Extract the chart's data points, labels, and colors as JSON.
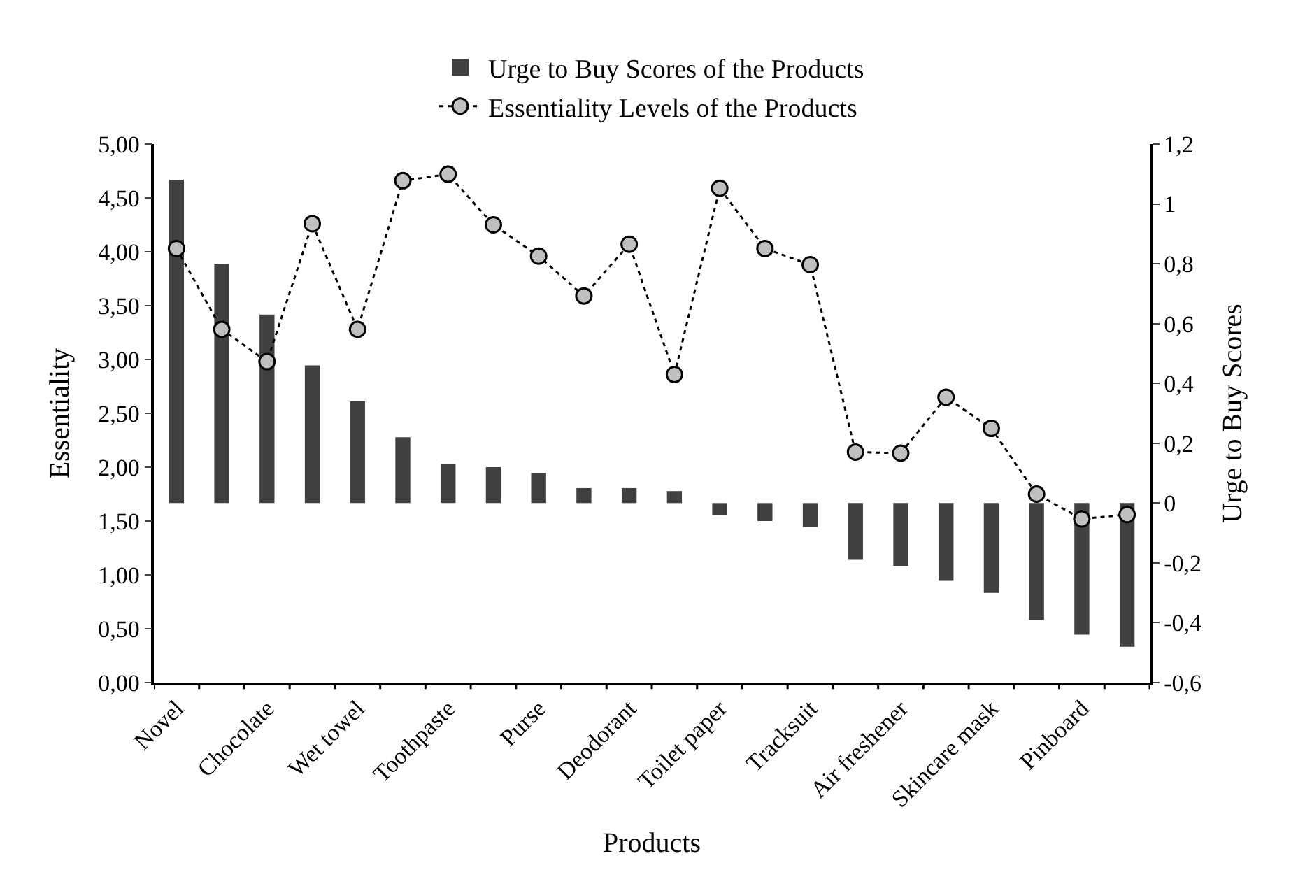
{
  "chart_data": {
    "type": "bar",
    "xlabel": "Products",
    "ylabel": "Essentiality",
    "y2label": "Urge to Buy Scores",
    "categories": [
      "Novel",
      null,
      "Chocolate",
      null,
      "Wet towel",
      null,
      "Toothpaste",
      null,
      "Purse",
      null,
      "Deodorant",
      null,
      "Toilet paper",
      null,
      "Tracksuit",
      null,
      "Air freshener",
      null,
      "Skincare mask",
      null,
      "Pinboard",
      null
    ],
    "series": [
      {
        "name": "Urge to Buy Scores of the Products",
        "axis": "y2",
        "color": "#404040",
        "values": [
          1.08,
          0.8,
          0.63,
          0.46,
          0.34,
          0.22,
          0.13,
          0.12,
          0.1,
          0.05,
          0.05,
          0.04,
          -0.04,
          -0.06,
          -0.08,
          -0.19,
          -0.21,
          -0.26,
          -0.3,
          -0.39,
          -0.44,
          -0.48
        ]
      },
      {
        "name": "Essentiality Levels of the Products",
        "type": "line",
        "axis": "y",
        "color": "#c0c0c0",
        "marker": "circle",
        "line_style": "dotted",
        "values": [
          4.03,
          3.28,
          2.98,
          4.26,
          3.28,
          4.66,
          4.72,
          4.25,
          3.96,
          3.59,
          4.07,
          2.86,
          4.59,
          4.03,
          3.88,
          2.14,
          2.13,
          2.65,
          2.36,
          1.75,
          1.52,
          1.56
        ]
      }
    ],
    "ylim": [
      0,
      5
    ],
    "yticks": [
      {
        "value": 0,
        "label": "0,00"
      },
      {
        "value": 0.5,
        "label": "0,50"
      },
      {
        "value": 1,
        "label": "1,00"
      },
      {
        "value": 1.5,
        "label": "1,50"
      },
      {
        "value": 2,
        "label": "2,00"
      },
      {
        "value": 2.5,
        "label": "2,50"
      },
      {
        "value": 3,
        "label": "3,00"
      },
      {
        "value": 3.5,
        "label": "3,50"
      },
      {
        "value": 4,
        "label": "4,00"
      },
      {
        "value": 4.5,
        "label": "4,50"
      },
      {
        "value": 5,
        "label": "5,00"
      }
    ],
    "y2lim": [
      -0.6,
      1.2
    ],
    "y2ticks": [
      {
        "value": -0.6,
        "label": "-0,6"
      },
      {
        "value": -0.4,
        "label": "-0,4"
      },
      {
        "value": -0.2,
        "label": "-0,2"
      },
      0,
      {
        "value": 0.2,
        "label": "0,2"
      },
      {
        "value": 0.4,
        "label": "0,4"
      },
      {
        "value": 0.6,
        "label": "0,6"
      },
      {
        "value": 0.8,
        "label": "0,8"
      },
      1,
      {
        "value": 1.2,
        "label": "1,2"
      }
    ],
    "legend": "top"
  }
}
